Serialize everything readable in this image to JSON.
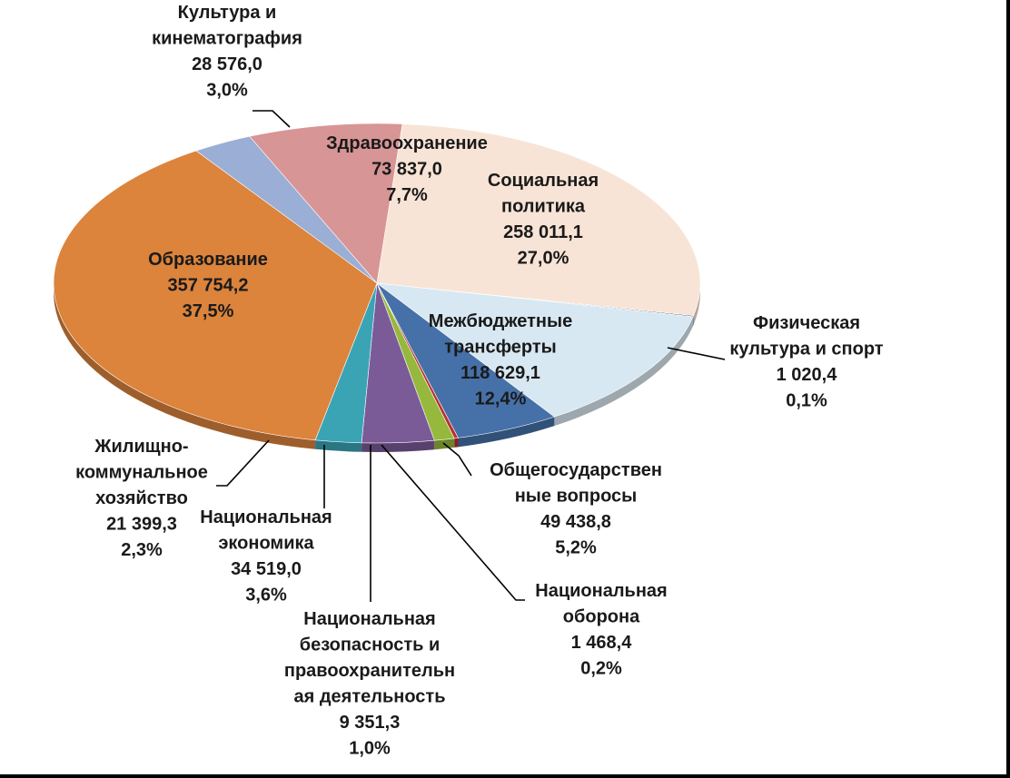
{
  "chart_data": {
    "type": "pie",
    "title": "",
    "units_note": "",
    "slices": [
      {
        "id": "culture",
        "name": "Культура  и кинематография",
        "label_lines": [
          "Культура  и",
          "кинематография"
        ],
        "value": "28 576,0",
        "percent": "3,0%",
        "share": 3.0,
        "color": "#9aaed6",
        "label_color": "#1a1a1a",
        "leader": true
      },
      {
        "id": "health",
        "name": "Здравоохранение",
        "label_lines": [
          "Здравоохранение"
        ],
        "value": "73 837,0",
        "percent": "7,7%",
        "share": 7.7,
        "color": "#d89595",
        "label_color": "#1a1a1a",
        "leader": false
      },
      {
        "id": "social",
        "name": "Социальная политика",
        "label_lines": [
          "Социальная",
          "политика"
        ],
        "value": "258 011,1",
        "percent": "27,0%",
        "share": 27.0,
        "color": "#f8e4d6",
        "label_color": "#1a1a1a",
        "leader": false
      },
      {
        "id": "sport",
        "name": "Физическая культура и спорт",
        "label_lines": [
          "Физическая",
          "культура и спорт"
        ],
        "value": "1 020,4",
        "percent": "0,1%",
        "share": 0.1,
        "color": "#1f3f73",
        "label_color": "#1a1a1a",
        "leader": true
      },
      {
        "id": "transfers",
        "name": "Межбюджетные трансферты",
        "label_lines": [
          "Межбюджетные",
          "трансферты"
        ],
        "value": "118 629,1",
        "percent": "12,4%",
        "share": 12.4,
        "color": "#d8e8f2",
        "label_color": "#1a1a1a",
        "leader": false
      },
      {
        "id": "general",
        "name": "Общегосударственные вопросы",
        "label_lines": [
          "Общегосударствен",
          "ные вопросы"
        ],
        "value": "49 438,8",
        "percent": "5,2%",
        "share": 5.2,
        "color": "#4670a8",
        "label_color": "#1a1a1a",
        "leader": true
      },
      {
        "id": "defense",
        "name": "Национальная оборона",
        "label_lines": [
          "Национальная",
          "оборона"
        ],
        "value": "1 468,4",
        "percent": "0,2%",
        "share": 0.2,
        "color": "#b8312f",
        "label_color": "#1a1a1a",
        "leader": true
      },
      {
        "id": "security",
        "name": "Национальная безопасность и правоохранительная деятельность",
        "label_lines": [
          "Национальная",
          "безопасность и",
          "правоохранительн",
          "ая деятельность"
        ],
        "value": "9 351,3",
        "percent": "1,0%",
        "share": 1.0,
        "color": "#96b83c",
        "label_color": "#1a1a1a",
        "leader": true
      },
      {
        "id": "economy",
        "name": "Национальная экономика",
        "label_lines": [
          "Национальная",
          "экономика"
        ],
        "value": "34 519,0",
        "percent": "3,6%",
        "share": 3.6,
        "color": "#7a5b98",
        "label_color": "#1a1a1a",
        "leader": true
      },
      {
        "id": "housing",
        "name": "Жилищно-коммунальное хозяйство",
        "label_lines": [
          "Жилищно-",
          "коммунальное",
          "хозяйство"
        ],
        "value": "21 399,3",
        "percent": "2,3%",
        "share": 2.3,
        "color": "#3aa4b4",
        "label_color": "#1a1a1a",
        "leader": true
      },
      {
        "id": "education",
        "name": "Образование",
        "label_lines": [
          "Образование"
        ],
        "value": "357 754,2",
        "percent": "37,5%",
        "share": 37.5,
        "color": "#dc833c",
        "label_color": "#1a1a1a",
        "leader": false
      }
    ],
    "legend": "none"
  }
}
